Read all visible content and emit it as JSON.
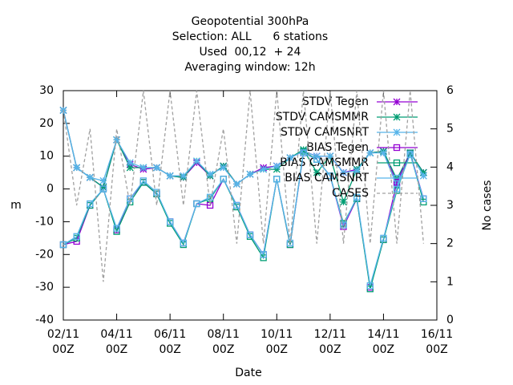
{
  "chart_data": {
    "type": "line",
    "title_lines": [
      "Geopotential 300hPa",
      "Selection: ALL      6 stations",
      "Used  00,12  + 24",
      "Averaging window: 12h"
    ],
    "xlabel": "Date",
    "ylabel": "m",
    "y2label": "No cases",
    "x": [
      "02/11\n00Z",
      "02/11\n12Z",
      "03/11\n00Z",
      "03/11\n12Z",
      "04/11\n00Z",
      "04/11\n12Z",
      "05/11\n00Z",
      "05/11\n12Z",
      "06/11\n00Z",
      "06/11\n12Z",
      "07/11\n00Z",
      "07/11\n12Z",
      "08/11\n00Z",
      "08/11\n12Z",
      "09/11\n00Z",
      "09/11\n12Z",
      "10/11\n00Z",
      "10/11\n12Z",
      "11/11\n00Z",
      "11/11\n12Z",
      "12/11\n00Z",
      "12/11\n12Z",
      "13/11\n00Z",
      "13/11\n12Z",
      "14/11\n00Z",
      "14/11\n12Z",
      "15/11\n00Z",
      "15/11\n12Z",
      "16/11\n00Z"
    ],
    "xticks": [
      "02/11\n00Z",
      "04/11\n00Z",
      "06/11\n00Z",
      "08/11\n00Z",
      "10/11\n00Z",
      "12/11\n00Z",
      "14/11\n00Z",
      "16/11\n00Z"
    ],
    "ylim": [
      -40,
      30
    ],
    "yticks": [
      -40,
      -30,
      -20,
      -10,
      0,
      10,
      20,
      30
    ],
    "y2lim": [
      0,
      6
    ],
    "y2ticks": [
      0,
      1,
      2,
      3,
      4,
      5,
      6
    ],
    "series": [
      {
        "name": "STDV Tegen",
        "color": "#9400d3",
        "marker": "star",
        "values": [
          24,
          6.5,
          3.5,
          0.5,
          15,
          7.5,
          6,
          6.5,
          4,
          3.5,
          8,
          4,
          7,
          1.5,
          4.5,
          6.5,
          7,
          9.5,
          11.5,
          10,
          10,
          5,
          6,
          11,
          11.5,
          2,
          11,
          5,
          null
        ]
      },
      {
        "name": "STDV CAMSMMR",
        "color": "#009e73",
        "marker": "star",
        "values": [
          24,
          6.5,
          3.5,
          0.5,
          15,
          6.5,
          6.5,
          6.5,
          4,
          3.5,
          8.5,
          4,
          7,
          1.5,
          4.5,
          6,
          6,
          9.5,
          12,
          5,
          10,
          -4,
          6,
          11,
          11.5,
          3,
          11,
          5,
          null
        ]
      },
      {
        "name": "STDV CAMSNRT",
        "color": "#56b4e9",
        "marker": "star",
        "values": [
          24,
          6.5,
          3.5,
          2.5,
          15,
          8,
          6.5,
          6.5,
          4,
          4,
          8.5,
          4.5,
          6.5,
          1.5,
          4.5,
          6,
          7,
          9.5,
          11.5,
          10,
          10,
          5,
          5.5,
          11,
          11,
          1,
          11,
          4,
          null
        ]
      },
      {
        "name": "BIAS Tegen",
        "color": "#9400d3",
        "marker": "square",
        "values": [
          -17,
          -16,
          -5,
          0,
          -12.5,
          -3,
          2,
          -1.5,
          -10,
          -16.5,
          -4.5,
          -5,
          3,
          -5,
          -14,
          -20,
          3,
          -17,
          11,
          9,
          4,
          -11.5,
          -3,
          -30,
          -15.5,
          2,
          11,
          -3,
          null
        ]
      },
      {
        "name": "BIAS CAMSMMR",
        "color": "#009e73",
        "marker": "square",
        "values": [
          -17,
          -15,
          -5,
          0,
          -13,
          -4,
          2,
          -1.5,
          -10.5,
          -17,
          -4.5,
          -3,
          3,
          -5.5,
          -14.5,
          -21,
          3,
          -17,
          11.5,
          9,
          4,
          -10.5,
          -3,
          -30.5,
          -15.5,
          -0.5,
          11,
          -4,
          null
        ]
      },
      {
        "name": "BIAS CAMSNRT",
        "color": "#56b4e9",
        "marker": "square",
        "values": [
          -17,
          -14.5,
          -4.5,
          0,
          -12,
          -3,
          2.5,
          -1,
          -10,
          -16.5,
          -4.5,
          -2.5,
          3,
          -5,
          -14,
          -20,
          3,
          -16.5,
          11,
          9,
          4,
          -11,
          -2.5,
          -29.5,
          -15,
          0,
          10.5,
          -3,
          null
        ]
      },
      {
        "name": "CASES",
        "color": "#a0a0a0",
        "marker": "none",
        "dashed": true,
        "axis": "y2",
        "values": [
          5.5,
          3,
          5,
          1,
          5,
          3,
          6,
          3,
          6,
          3,
          6,
          3,
          5,
          2,
          6,
          2,
          6,
          2,
          6,
          2,
          6,
          2,
          6,
          2,
          6,
          2,
          6,
          2,
          null
        ]
      }
    ]
  }
}
